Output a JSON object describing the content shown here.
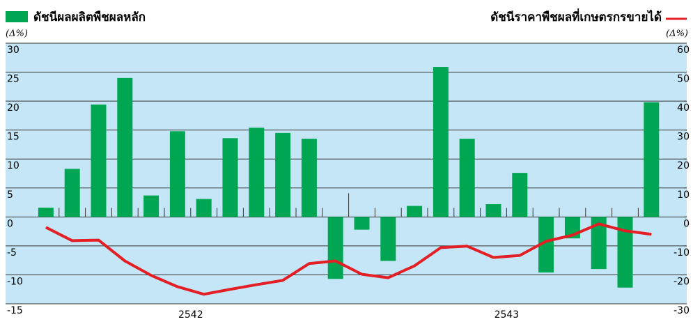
{
  "chart_data": {
    "type": "bar-line",
    "bar_title": "ดัชนีผลผลิตพืชผลหลัก",
    "line_title": "ดัชนีราคาพืชผลที่เกษตรกรขายได้",
    "y_unit": "(Δ%)",
    "y2_unit": "(Δ%)",
    "categories": [
      null,
      null,
      null,
      null,
      null,
      null,
      null,
      null,
      null,
      null,
      null,
      null,
      null,
      null,
      null,
      null,
      null,
      null,
      null,
      null,
      null,
      null,
      null,
      null
    ],
    "year_labels": [
      "2542",
      "2543"
    ],
    "series": [
      {
        "name": "ดัชนีผลผลิตพืชผลหลัก",
        "color": "#00a651",
        "axis": "y",
        "values": [
          1.6,
          8.3,
          19.4,
          24,
          3.7,
          14.8,
          3.1,
          13.6,
          15.4,
          14.5,
          13.5,
          -10.7,
          -2.2,
          -7.6,
          1.9,
          25.9,
          13.5,
          2.2,
          7.6,
          -9.6,
          -3.7,
          -9,
          -12.2,
          19.8
        ]
      },
      {
        "name": "ดัชนีราคาพืชผลที่เกษตรกรขายได้",
        "color": "#e31e24",
        "axis": "y2",
        "values": [
          -3.6,
          -8.2,
          -8,
          -15.2,
          -20.2,
          -24.1,
          -26.7,
          -25,
          -23.4,
          -21.9,
          -16.1,
          -15.2,
          -19.8,
          -21,
          -16.9,
          -10.6,
          -10.1,
          -14,
          -13.3,
          -8.4,
          -6.3,
          -2.4,
          -4.8,
          -6
        ]
      }
    ],
    "ylim": [
      -15,
      30
    ],
    "yticks": [
      -15,
      -10,
      -5,
      0,
      5,
      10,
      15,
      20,
      25,
      30
    ],
    "y2lim": [
      -30,
      60
    ],
    "y2ticks": [
      -30,
      -20,
      -10,
      0,
      10,
      20,
      30,
      40,
      50,
      60
    ],
    "grid": true,
    "background": "#c5e6f7"
  }
}
